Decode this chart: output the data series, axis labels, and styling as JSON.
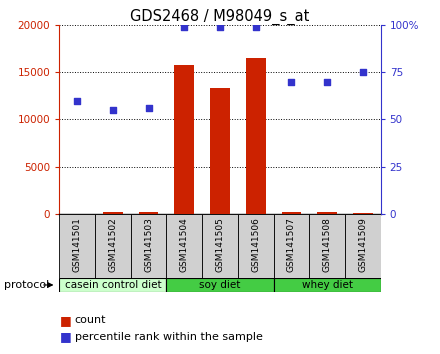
{
  "title": "GDS2468 / M98049_s_at",
  "samples": [
    "GSM141501",
    "GSM141502",
    "GSM141503",
    "GSM141504",
    "GSM141505",
    "GSM141506",
    "GSM141507",
    "GSM141508",
    "GSM141509"
  ],
  "counts": [
    50,
    180,
    280,
    15800,
    13300,
    16500,
    180,
    180,
    80
  ],
  "percentile_ranks": [
    60,
    55,
    56,
    99,
    99,
    99,
    70,
    70,
    75
  ],
  "ylim_left": [
    0,
    20000
  ],
  "ylim_right": [
    0,
    100
  ],
  "yticks_left": [
    0,
    5000,
    10000,
    15000,
    20000
  ],
  "yticks_right": [
    0,
    25,
    50,
    75,
    100
  ],
  "yticklabels_right": [
    "0",
    "25",
    "50",
    "75",
    "100%"
  ],
  "bar_color": "#cc2200",
  "dot_color": "#3333cc",
  "background_color": "#ffffff",
  "protocol_groups": [
    {
      "label": "casein control diet",
      "start": 0,
      "end": 3,
      "color": "#ccffcc"
    },
    {
      "label": "soy diet",
      "start": 3,
      "end": 6,
      "color": "#44cc44"
    },
    {
      "label": "whey diet",
      "start": 6,
      "end": 9,
      "color": "#44cc44"
    }
  ],
  "protocol_label": "protocol",
  "legend_count_label": "count",
  "legend_pct_label": "percentile rank within the sample",
  "tick_label_color_left": "#cc2200",
  "tick_label_color_right": "#3333cc",
  "xlabel_box_color": "#d0d0d0",
  "xlabel_fontsize": 6.5,
  "bar_width": 0.55
}
